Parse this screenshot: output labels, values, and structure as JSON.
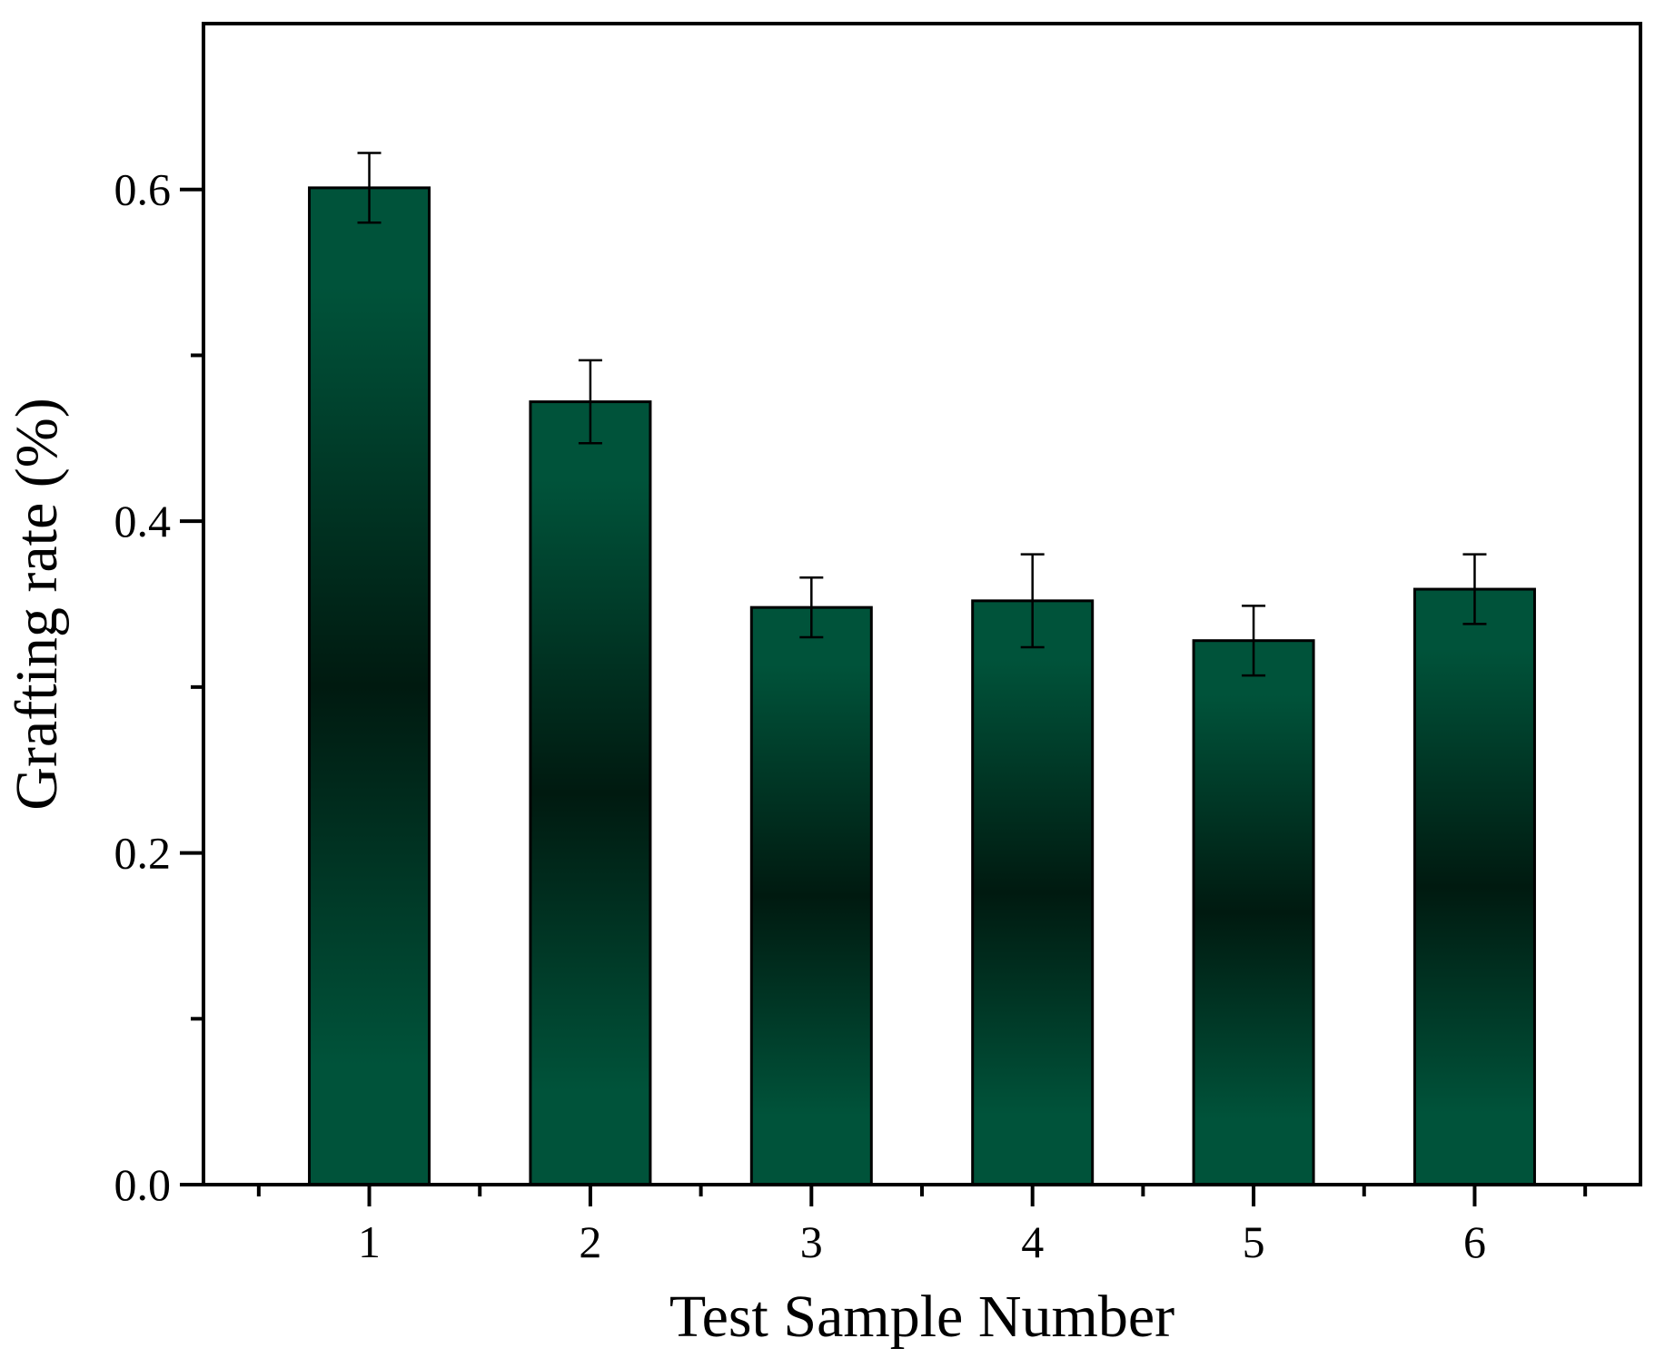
{
  "chart_data": {
    "type": "bar",
    "title": "",
    "xlabel": "Test Sample Number",
    "ylabel": "Grafting rate (%)",
    "categories": [
      "1",
      "2",
      "3",
      "4",
      "5",
      "6"
    ],
    "series": [
      {
        "values": [
          0.601,
          0.472,
          0.348,
          0.352,
          0.328,
          0.359
        ],
        "errors": [
          0.021,
          0.025,
          0.018,
          0.028,
          0.021,
          0.021
        ]
      }
    ],
    "ylim": [
      0,
      0.7
    ],
    "yticks": [
      0.0,
      0.2,
      0.4,
      0.6
    ],
    "yticks_labels": [
      "0.0",
      "0.2",
      "0.4",
      "0.6"
    ],
    "y_minor_ticks": [
      0.1,
      0.3,
      0.5
    ],
    "grid": false,
    "legend": "none",
    "colors": {
      "bar_edge": "#00533A",
      "bar_dark": "#001A10",
      "bar_outline": "#000000",
      "axis": "#000000"
    }
  }
}
